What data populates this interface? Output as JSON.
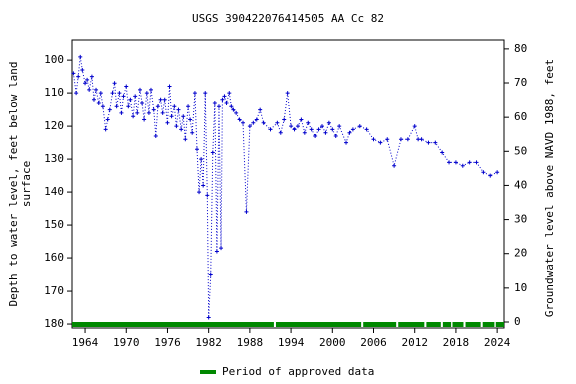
{
  "chart_data": {
    "type": "line",
    "title": "USGS 390422076414505 AA Cc  82",
    "y_label_lines": [
      "Depth to water level, feet below land",
      "surface"
    ],
    "y2_label": "Groundwater level above NAVD 1988, feet",
    "xlim": [
      1962.1,
      2025.0
    ],
    "xticks": [
      1964,
      1970,
      1976,
      1982,
      1988,
      1994,
      2000,
      2006,
      2012,
      2018,
      2024
    ],
    "ylim": [
      181.2,
      93.9
    ],
    "yticks": [
      100,
      110,
      120,
      130,
      140,
      150,
      160,
      170,
      180
    ],
    "y2lim": [
      -1.76,
      82.6
    ],
    "y2ticks": [
      0,
      10,
      20,
      30,
      40,
      50,
      60,
      70,
      80
    ],
    "series": [
      {
        "name": "Depth to water level",
        "color": "#0000cc",
        "x": [
          1962.3,
          1962.7,
          1963.0,
          1963.3,
          1963.6,
          1964.0,
          1964.3,
          1964.6,
          1965.0,
          1965.3,
          1965.6,
          1966.0,
          1966.3,
          1966.6,
          1967.0,
          1967.3,
          1967.6,
          1968.0,
          1968.3,
          1968.6,
          1969.0,
          1969.3,
          1969.6,
          1970.0,
          1970.3,
          1970.6,
          1971.0,
          1971.3,
          1971.6,
          1972.0,
          1972.3,
          1972.6,
          1973.0,
          1973.3,
          1973.6,
          1974.0,
          1974.3,
          1974.6,
          1975.0,
          1975.3,
          1975.6,
          1976.0,
          1976.3,
          1976.6,
          1977.0,
          1977.3,
          1977.6,
          1978.0,
          1978.3,
          1978.6,
          1979.0,
          1979.3,
          1979.6,
          1980.0,
          1980.3,
          1980.6,
          1980.9,
          1981.2,
          1981.5,
          1981.8,
          1982.0,
          1982.3,
          1982.6,
          1982.9,
          1983.2,
          1983.5,
          1983.8,
          1984.0,
          1984.3,
          1984.6,
          1985.0,
          1985.3,
          1985.6,
          1986.0,
          1986.5,
          1987.0,
          1987.5,
          1988.0,
          1988.5,
          1989.0,
          1989.5,
          1990.0,
          1991.0,
          1992.0,
          1992.5,
          1993.0,
          1993.5,
          1994.0,
          1994.5,
          1995.0,
          1995.5,
          1996.0,
          1996.5,
          1997.0,
          1997.5,
          1998.0,
          1998.5,
          1999.0,
          1999.5,
          2000.0,
          2000.5,
          2001.0,
          2002.0,
          2002.5,
          2003.0,
          2004.0,
          2005.0,
          2006.0,
          2007.0,
          2008.0,
          2009.0,
          2010.0,
          2011.0,
          2012.0,
          2012.5,
          2013.0,
          2014.0,
          2015.0,
          2016.0,
          2017.0,
          2018.0,
          2019.0,
          2020.0,
          2021.0,
          2022.0,
          2023.0,
          2024.0
        ],
        "values": [
          104,
          110,
          105,
          99,
          103,
          107,
          106,
          109,
          105,
          112,
          109,
          113,
          110,
          114,
          121,
          118,
          115,
          110,
          107,
          114,
          110,
          116,
          111,
          108,
          114,
          112,
          117,
          111,
          116,
          109,
          113,
          118,
          110,
          116,
          109,
          115,
          123,
          114,
          112,
          116,
          112,
          119,
          108,
          117,
          114,
          120,
          115,
          121,
          117,
          124,
          114,
          118,
          122,
          110,
          127,
          140,
          130,
          138,
          110,
          141,
          178,
          165,
          128,
          113,
          158,
          114,
          157,
          112,
          111,
          113,
          110,
          114,
          115,
          116,
          118,
          119,
          146,
          120,
          119,
          118,
          115,
          119,
          121,
          119,
          122,
          118,
          110,
          120,
          121,
          120,
          118,
          122,
          119,
          121,
          123,
          121,
          120,
          122,
          119,
          121,
          123,
          120,
          125,
          122,
          121,
          120,
          121,
          124,
          125,
          124,
          132,
          124,
          124,
          120,
          124,
          124,
          125,
          125,
          128,
          131,
          131,
          132,
          131,
          131,
          134,
          135,
          134
        ]
      }
    ],
    "approved_periods": [
      [
        1962.1,
        1991.5
      ],
      [
        1991.8,
        2004.2
      ],
      [
        2004.5,
        2009.3
      ],
      [
        2009.6,
        2013.4
      ],
      [
        2013.7,
        2015.8
      ],
      [
        2016.1,
        2017.3
      ],
      [
        2017.5,
        2019.1
      ],
      [
        2019.4,
        2021.6
      ],
      [
        2021.9,
        2023.6
      ],
      [
        2023.8,
        2025.0
      ]
    ],
    "approved_color": "#008800",
    "legend_label": "Period of approved data"
  }
}
